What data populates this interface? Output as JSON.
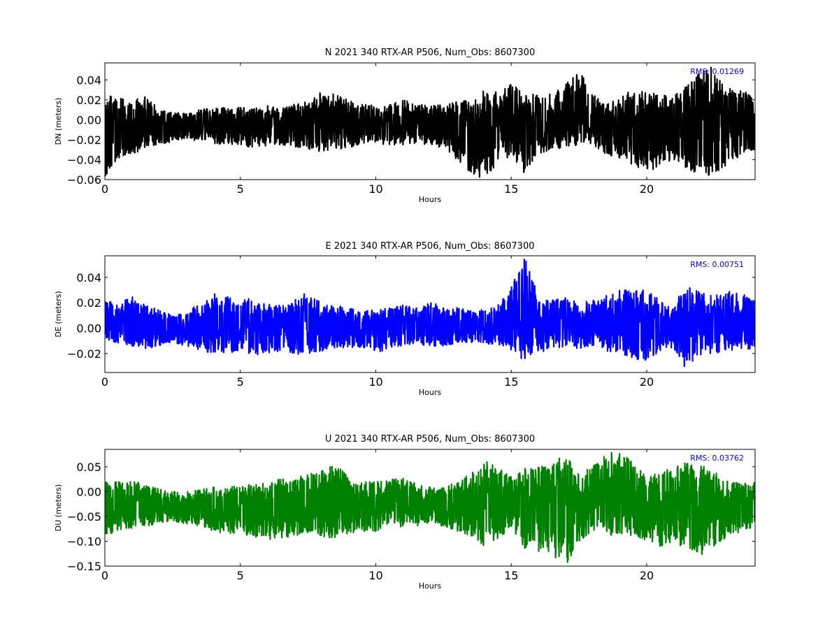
{
  "chart_data": [
    {
      "type": "line",
      "title": "N 2021 340 RTX-AR  P506, Num_Obs: 8607300",
      "xlabel": "Hours",
      "ylabel": "DN (meters)",
      "xlim": [
        0,
        24
      ],
      "ylim": [
        -0.06,
        0.057
      ],
      "x_ticks": [
        0,
        5,
        10,
        15,
        20
      ],
      "x_tick_labels": [
        "0",
        "5",
        "10",
        "15",
        "20"
      ],
      "y_ticks": [
        -0.06,
        -0.04,
        -0.02,
        0.0,
        0.02,
        0.04
      ],
      "y_tick_labels": [
        "−0.06",
        "−0.04",
        "−0.02",
        "0.00",
        "0.02",
        "0.04"
      ],
      "annotation": "RMS:  0.01269",
      "annotation_color": "#0000ff",
      "color": "#000000",
      "grid": false,
      "series": [
        {
          "x": [
            0,
            0.5,
            1,
            1.5,
            2,
            2.5,
            3,
            3.5,
            4,
            4.5,
            5,
            5.5,
            6,
            6.5,
            7,
            7.5,
            8,
            8.5,
            9,
            9.5,
            10,
            10.5,
            11,
            11.5,
            12,
            12.5,
            13,
            13.5,
            14,
            14.5,
            15,
            15.5,
            16,
            16.5,
            17,
            17.5,
            18,
            18.5,
            19,
            19.5,
            20,
            20.5,
            21,
            21.5,
            22,
            22.5,
            23,
            23.5,
            24
          ],
          "upper": [
            0.027,
            0.022,
            0.018,
            0.025,
            0.01,
            0.008,
            0.006,
            0.01,
            0.012,
            0.013,
            0.014,
            0.012,
            0.015,
            0.013,
            0.016,
            0.018,
            0.03,
            0.025,
            0.02,
            0.016,
            0.014,
            0.015,
            0.02,
            0.016,
            0.014,
            0.015,
            0.018,
            0.02,
            0.03,
            0.028,
            0.036,
            0.03,
            0.024,
            0.028,
            0.035,
            0.052,
            0.025,
            0.018,
            0.022,
            0.032,
            0.03,
            0.025,
            0.024,
            0.035,
            0.048,
            0.056,
            0.035,
            0.03,
            0.022
          ],
          "lower": [
            -0.058,
            -0.04,
            -0.035,
            -0.028,
            -0.025,
            -0.022,
            -0.02,
            -0.022,
            -0.024,
            -0.025,
            -0.026,
            -0.028,
            -0.026,
            -0.025,
            -0.028,
            -0.03,
            -0.032,
            -0.03,
            -0.028,
            -0.025,
            -0.024,
            -0.026,
            -0.025,
            -0.024,
            -0.026,
            -0.028,
            -0.04,
            -0.055,
            -0.06,
            -0.045,
            -0.035,
            -0.055,
            -0.035,
            -0.03,
            -0.028,
            -0.025,
            -0.025,
            -0.035,
            -0.04,
            -0.045,
            -0.055,
            -0.045,
            -0.04,
            -0.05,
            -0.058,
            -0.055,
            -0.045,
            -0.035,
            -0.03
          ]
        }
      ]
    },
    {
      "type": "line",
      "title": "E 2021 340 RTX-AR  P506, Num_Obs: 8607300",
      "xlabel": "Hours",
      "ylabel": "DE (meters)",
      "xlim": [
        0,
        24
      ],
      "ylim": [
        -0.035,
        0.057
      ],
      "x_ticks": [
        0,
        5,
        10,
        15,
        20
      ],
      "x_tick_labels": [
        "0",
        "5",
        "10",
        "15",
        "20"
      ],
      "y_ticks": [
        -0.02,
        0.0,
        0.02,
        0.04
      ],
      "y_tick_labels": [
        "−0.02",
        "0.00",
        "0.02",
        "0.04"
      ],
      "annotation": "RMS:  0.00751",
      "annotation_color": "#0000ff",
      "color": "#0000ff",
      "grid": false,
      "series": [
        {
          "x": [
            0,
            0.5,
            1,
            1.5,
            2,
            2.5,
            3,
            3.5,
            4,
            4.5,
            5,
            5.5,
            6,
            6.5,
            7,
            7.5,
            8,
            8.5,
            9,
            9.5,
            10,
            10.5,
            11,
            11.5,
            12,
            12.5,
            13,
            13.5,
            14,
            14.5,
            15,
            15.5,
            16,
            16.5,
            17,
            17.5,
            18,
            18.5,
            19,
            19.5,
            20,
            20.5,
            21,
            21.5,
            22,
            22.5,
            23,
            23.5,
            24
          ],
          "upper": [
            0.022,
            0.02,
            0.025,
            0.018,
            0.015,
            0.01,
            0.012,
            0.02,
            0.028,
            0.025,
            0.022,
            0.024,
            0.02,
            0.018,
            0.022,
            0.03,
            0.02,
            0.018,
            0.016,
            0.015,
            0.014,
            0.016,
            0.018,
            0.016,
            0.02,
            0.018,
            0.016,
            0.014,
            0.015,
            0.018,
            0.032,
            0.057,
            0.025,
            0.022,
            0.024,
            0.02,
            0.022,
            0.026,
            0.03,
            0.03,
            0.032,
            0.022,
            0.02,
            0.034,
            0.028,
            0.026,
            0.03,
            0.028,
            0.024
          ],
          "lower": [
            -0.01,
            -0.012,
            -0.014,
            -0.016,
            -0.015,
            -0.012,
            -0.014,
            -0.018,
            -0.02,
            -0.02,
            -0.018,
            -0.022,
            -0.02,
            -0.018,
            -0.02,
            -0.022,
            -0.018,
            -0.016,
            -0.016,
            -0.015,
            -0.02,
            -0.016,
            -0.014,
            -0.012,
            -0.015,
            -0.014,
            -0.012,
            -0.012,
            -0.012,
            -0.014,
            -0.018,
            -0.026,
            -0.02,
            -0.016,
            -0.015,
            -0.016,
            -0.015,
            -0.018,
            -0.02,
            -0.025,
            -0.026,
            -0.018,
            -0.016,
            -0.035,
            -0.022,
            -0.02,
            -0.018,
            -0.016,
            -0.018
          ]
        }
      ]
    },
    {
      "type": "line",
      "title": "U 2021 340 RTX-AR  P506, Num_Obs: 8607300",
      "xlabel": "Hours",
      "ylabel": "DU (meters)",
      "xlim": [
        0,
        24
      ],
      "ylim": [
        -0.15,
        0.085
      ],
      "x_ticks": [
        0,
        5,
        10,
        15,
        20
      ],
      "x_tick_labels": [
        "0",
        "5",
        "10",
        "15",
        "20"
      ],
      "y_ticks": [
        -0.15,
        -0.1,
        -0.05,
        0.0,
        0.05
      ],
      "y_tick_labels": [
        "−0.15",
        "−0.10",
        "−0.05",
        "0.00",
        "0.05"
      ],
      "annotation": "RMS:  0.03762",
      "annotation_color": "#0000ff",
      "color": "#008000",
      "grid": false,
      "series": [
        {
          "x": [
            0,
            0.5,
            1,
            1.5,
            2,
            2.5,
            3,
            3.5,
            4,
            4.5,
            5,
            5.5,
            6,
            6.5,
            7,
            7.5,
            8,
            8.5,
            9,
            9.5,
            10,
            10.5,
            11,
            11.5,
            12,
            12.5,
            13,
            13.5,
            14,
            14.5,
            15,
            15.5,
            16,
            16.5,
            17,
            17.5,
            18,
            18.5,
            19,
            19.5,
            20,
            20.5,
            21,
            21.5,
            22,
            22.5,
            23,
            23.5,
            24
          ],
          "upper": [
            0.02,
            0.02,
            0.022,
            0.015,
            0.005,
            0.0,
            0.0,
            0.005,
            0.01,
            0.01,
            0.012,
            0.015,
            0.02,
            0.025,
            0.03,
            0.04,
            0.045,
            0.055,
            0.03,
            0.02,
            0.02,
            0.025,
            0.03,
            0.015,
            0.01,
            0.008,
            0.02,
            0.04,
            0.065,
            0.05,
            0.03,
            0.05,
            0.05,
            0.06,
            0.075,
            0.04,
            0.05,
            0.075,
            0.085,
            0.06,
            0.03,
            0.04,
            0.05,
            0.06,
            0.055,
            0.04,
            0.02,
            0.02,
            0.02
          ],
          "lower": [
            -0.09,
            -0.08,
            -0.075,
            -0.07,
            -0.065,
            -0.06,
            -0.065,
            -0.07,
            -0.08,
            -0.085,
            -0.085,
            -0.09,
            -0.1,
            -0.095,
            -0.09,
            -0.085,
            -0.09,
            -0.095,
            -0.085,
            -0.08,
            -0.08,
            -0.075,
            -0.07,
            -0.07,
            -0.065,
            -0.07,
            -0.08,
            -0.09,
            -0.11,
            -0.095,
            -0.08,
            -0.115,
            -0.12,
            -0.13,
            -0.15,
            -0.1,
            -0.08,
            -0.09,
            -0.085,
            -0.09,
            -0.1,
            -0.11,
            -0.1,
            -0.12,
            -0.13,
            -0.11,
            -0.09,
            -0.08,
            -0.07
          ]
        }
      ]
    }
  ]
}
